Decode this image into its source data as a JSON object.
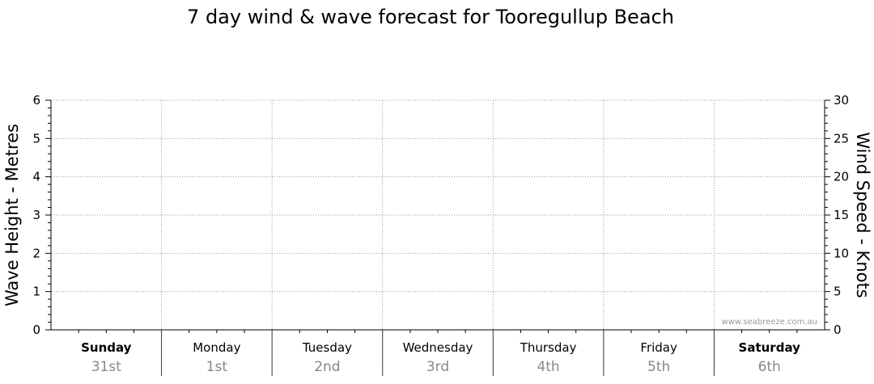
{
  "chart_data": {
    "type": "line",
    "title": "7 day wind & wave forecast for Tooregullup Beach",
    "ylabel_left": "Wave Height - Metres",
    "ylabel_right": "Wind Speed - Knots",
    "ylim_left": [
      0,
      6
    ],
    "ylim_right": [
      0,
      30
    ],
    "yticks_left": [
      "0",
      "1",
      "2",
      "3",
      "4",
      "5",
      "6"
    ],
    "yticks_right": [
      "0",
      "5",
      "10",
      "15",
      "20",
      "25",
      "30"
    ],
    "grid": true,
    "days": [
      {
        "name": "Sunday",
        "date": "31st",
        "bold": true
      },
      {
        "name": "Monday",
        "date": "1st",
        "bold": false
      },
      {
        "name": "Tuesday",
        "date": "2nd",
        "bold": false
      },
      {
        "name": "Wednesday",
        "date": "3rd",
        "bold": false
      },
      {
        "name": "Thursday",
        "date": "4th",
        "bold": false
      },
      {
        "name": "Friday",
        "date": "5th",
        "bold": false
      },
      {
        "name": "Saturday",
        "date": "6th",
        "bold": true
      }
    ],
    "series": [],
    "watermark": "www.seabreeze.com.au"
  }
}
